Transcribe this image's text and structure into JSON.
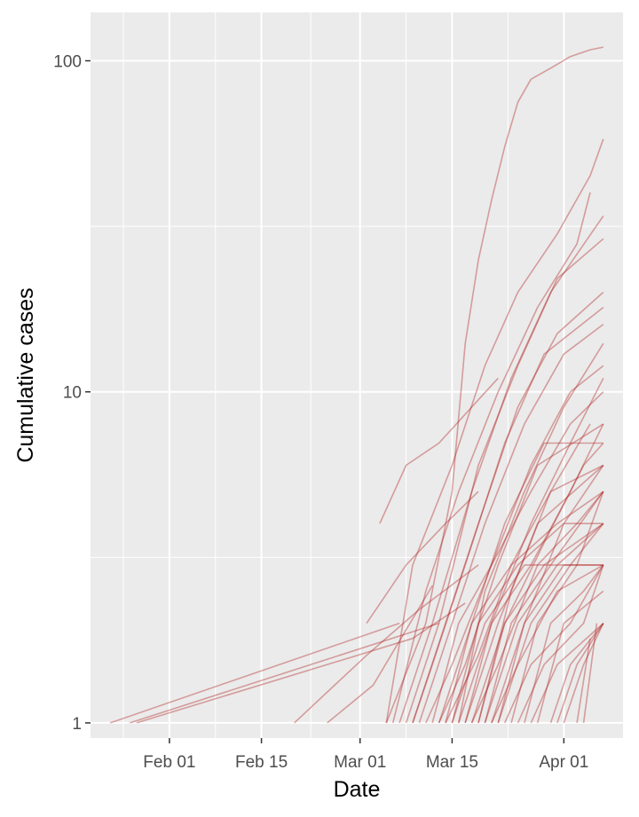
{
  "chart_data": {
    "type": "line",
    "xlabel": "Date",
    "ylabel": "Cumulative cases",
    "x_scale": "date",
    "y_scale": "log10",
    "xlim": [
      "2020-01-20",
      "2020-04-10"
    ],
    "ylim": [
      0.9,
      140
    ],
    "x_ticks": [
      {
        "date": "2020-02-01",
        "label": "Feb 01"
      },
      {
        "date": "2020-02-15",
        "label": "Feb 15"
      },
      {
        "date": "2020-03-01",
        "label": "Mar 01"
      },
      {
        "date": "2020-03-15",
        "label": "Mar 15"
      },
      {
        "date": "2020-04-01",
        "label": "Apr 01"
      }
    ],
    "y_ticks": [
      {
        "value": 1,
        "label": "1"
      },
      {
        "value": 10,
        "label": "10"
      },
      {
        "value": 100,
        "label": "100"
      }
    ],
    "grid": true,
    "line_color": "#b22222",
    "line_opacity": 0.4,
    "series": [
      {
        "points": [
          [
            "2020-01-23",
            1
          ],
          [
            "2020-03-07",
            2
          ]
        ]
      },
      {
        "points": [
          [
            "2020-01-26",
            1
          ],
          [
            "2020-03-13",
            2
          ]
        ]
      },
      {
        "points": [
          [
            "2020-01-27",
            1
          ],
          [
            "2020-03-09",
            1.8
          ],
          [
            "2020-03-17",
            2.3
          ]
        ]
      },
      {
        "points": [
          [
            "2020-02-20",
            1
          ],
          [
            "2020-03-02",
            1.6
          ],
          [
            "2020-03-10",
            2.2
          ],
          [
            "2020-03-19",
            3
          ]
        ]
      },
      {
        "points": [
          [
            "2020-02-25",
            1
          ],
          [
            "2020-03-03",
            1.3
          ],
          [
            "2020-03-12",
            2.6
          ]
        ]
      },
      {
        "points": [
          [
            "2020-03-02",
            2
          ],
          [
            "2020-03-08",
            3
          ],
          [
            "2020-03-14",
            4
          ],
          [
            "2020-03-19",
            5
          ]
        ]
      },
      {
        "points": [
          [
            "2020-03-04",
            4
          ],
          [
            "2020-03-08",
            6
          ],
          [
            "2020-03-13",
            7
          ],
          [
            "2020-03-18",
            9
          ],
          [
            "2020-03-22",
            11
          ]
        ]
      },
      {
        "points": [
          [
            "2020-03-05",
            1
          ],
          [
            "2020-03-11",
            2
          ],
          [
            "2020-03-15",
            5
          ],
          [
            "2020-03-17",
            14
          ],
          [
            "2020-03-19",
            25
          ],
          [
            "2020-03-21",
            38
          ],
          [
            "2020-03-23",
            55
          ],
          [
            "2020-03-25",
            75
          ],
          [
            "2020-03-27",
            88
          ],
          [
            "2020-03-30",
            95
          ],
          [
            "2020-04-02",
            103
          ],
          [
            "2020-04-05",
            108
          ],
          [
            "2020-04-07",
            110
          ]
        ]
      },
      {
        "points": [
          [
            "2020-03-05",
            1
          ],
          [
            "2020-03-09",
            3
          ],
          [
            "2020-03-15",
            6
          ],
          [
            "2020-03-20",
            12
          ],
          [
            "2020-03-25",
            20
          ],
          [
            "2020-03-31",
            30
          ],
          [
            "2020-04-05",
            45
          ],
          [
            "2020-04-07",
            58
          ]
        ]
      },
      {
        "points": [
          [
            "2020-03-06",
            1
          ],
          [
            "2020-03-11",
            2.5
          ],
          [
            "2020-03-16",
            5
          ],
          [
            "2020-03-22",
            10
          ],
          [
            "2020-03-28",
            18
          ],
          [
            "2020-04-03",
            28
          ],
          [
            "2020-04-05",
            40
          ]
        ]
      },
      {
        "points": [
          [
            "2020-03-07",
            1
          ],
          [
            "2020-03-12",
            2
          ],
          [
            "2020-03-18",
            5
          ],
          [
            "2020-03-24",
            11
          ],
          [
            "2020-03-30",
            20
          ],
          [
            "2020-04-07",
            34
          ]
        ]
      },
      {
        "points": [
          [
            "2020-03-08",
            1
          ],
          [
            "2020-03-13",
            2
          ],
          [
            "2020-03-19",
            6
          ],
          [
            "2020-03-25",
            12
          ],
          [
            "2020-03-31",
            22
          ],
          [
            "2020-04-07",
            29
          ]
        ]
      },
      {
        "points": [
          [
            "2020-03-09",
            1
          ],
          [
            "2020-03-14",
            2
          ],
          [
            "2020-03-19",
            4
          ],
          [
            "2020-03-25",
            9
          ],
          [
            "2020-03-31",
            15
          ],
          [
            "2020-04-07",
            20
          ]
        ]
      },
      {
        "points": [
          [
            "2020-03-09",
            1
          ],
          [
            "2020-03-12",
            1.5
          ],
          [
            "2020-03-17",
            3
          ],
          [
            "2020-03-23",
            7
          ],
          [
            "2020-03-29",
            13
          ],
          [
            "2020-04-07",
            18
          ]
        ]
      },
      {
        "points": [
          [
            "2020-03-10",
            1
          ],
          [
            "2020-03-15",
            2
          ],
          [
            "2020-03-20",
            4
          ],
          [
            "2020-03-26",
            8
          ],
          [
            "2020-04-01",
            13
          ],
          [
            "2020-04-07",
            16
          ]
        ]
      },
      {
        "points": [
          [
            "2020-03-11",
            1
          ],
          [
            "2020-03-15",
            1.5
          ],
          [
            "2020-03-21",
            3
          ],
          [
            "2020-03-27",
            6
          ],
          [
            "2020-04-02",
            10
          ],
          [
            "2020-04-07",
            12
          ]
        ]
      },
      {
        "points": [
          [
            "2020-03-12",
            1
          ],
          [
            "2020-03-16",
            2
          ],
          [
            "2020-03-21",
            3
          ],
          [
            "2020-03-27",
            5
          ],
          [
            "2020-04-02",
            8
          ],
          [
            "2020-04-07",
            10
          ]
        ]
      },
      {
        "points": [
          [
            "2020-03-13",
            1
          ],
          [
            "2020-03-17",
            1.5
          ],
          [
            "2020-03-22",
            3
          ],
          [
            "2020-03-28",
            6
          ],
          [
            "2020-04-07",
            8
          ]
        ]
      },
      {
        "points": [
          [
            "2020-03-13",
            1
          ],
          [
            "2020-03-18",
            2
          ],
          [
            "2020-03-23",
            4
          ],
          [
            "2020-03-29",
            7
          ],
          [
            "2020-04-07",
            7
          ]
        ]
      },
      {
        "points": [
          [
            "2020-03-14",
            1
          ],
          [
            "2020-03-18",
            2
          ],
          [
            "2020-03-24",
            3
          ],
          [
            "2020-03-30",
            5
          ],
          [
            "2020-04-07",
            6
          ]
        ]
      },
      {
        "points": [
          [
            "2020-03-14",
            1
          ],
          [
            "2020-03-19",
            1.6
          ],
          [
            "2020-03-24",
            3
          ],
          [
            "2020-03-31",
            4
          ],
          [
            "2020-04-07",
            5
          ]
        ]
      },
      {
        "points": [
          [
            "2020-03-15",
            1
          ],
          [
            "2020-03-19",
            2
          ],
          [
            "2020-03-25",
            3
          ],
          [
            "2020-04-01",
            4
          ],
          [
            "2020-04-07",
            4
          ]
        ]
      },
      {
        "points": [
          [
            "2020-03-15",
            1
          ],
          [
            "2020-03-20",
            2
          ],
          [
            "2020-03-26",
            3
          ],
          [
            "2020-04-07",
            3
          ]
        ]
      },
      {
        "points": [
          [
            "2020-03-16",
            1
          ],
          [
            "2020-03-20",
            2.5
          ],
          [
            "2020-03-26",
            5
          ],
          [
            "2020-04-01",
            9
          ],
          [
            "2020-04-07",
            14
          ]
        ]
      },
      {
        "points": [
          [
            "2020-03-16",
            1
          ],
          [
            "2020-03-21",
            2
          ],
          [
            "2020-03-27",
            4
          ],
          [
            "2020-04-02",
            7
          ],
          [
            "2020-04-07",
            11
          ]
        ]
      },
      {
        "points": [
          [
            "2020-03-17",
            1
          ],
          [
            "2020-03-21",
            2
          ],
          [
            "2020-03-27",
            3
          ],
          [
            "2020-04-02",
            5
          ],
          [
            "2020-04-07",
            8
          ]
        ]
      },
      {
        "points": [
          [
            "2020-03-17",
            1
          ],
          [
            "2020-03-22",
            2
          ],
          [
            "2020-03-28",
            4
          ],
          [
            "2020-04-07",
            6
          ]
        ]
      },
      {
        "points": [
          [
            "2020-03-18",
            1
          ],
          [
            "2020-03-22",
            1.5
          ],
          [
            "2020-03-28",
            3
          ],
          [
            "2020-04-03",
            4
          ],
          [
            "2020-04-07",
            5
          ]
        ]
      },
      {
        "points": [
          [
            "2020-03-18",
            1
          ],
          [
            "2020-03-23",
            2
          ],
          [
            "2020-03-29",
            3
          ],
          [
            "2020-04-07",
            4
          ]
        ]
      },
      {
        "points": [
          [
            "2020-03-19",
            1
          ],
          [
            "2020-03-23",
            2
          ],
          [
            "2020-03-29",
            3.5
          ],
          [
            "2020-04-04",
            6
          ],
          [
            "2020-04-07",
            7
          ]
        ]
      },
      {
        "points": [
          [
            "2020-03-19",
            1
          ],
          [
            "2020-03-24",
            2.5
          ],
          [
            "2020-03-30",
            5
          ],
          [
            "2020-04-05",
            8
          ]
        ]
      },
      {
        "points": [
          [
            "2020-03-20",
            1
          ],
          [
            "2020-03-24",
            2
          ],
          [
            "2020-03-30",
            3
          ],
          [
            "2020-04-07",
            5
          ]
        ]
      },
      {
        "points": [
          [
            "2020-03-20",
            1
          ],
          [
            "2020-03-25",
            2
          ],
          [
            "2020-03-31",
            3
          ],
          [
            "2020-04-07",
            4
          ]
        ]
      },
      {
        "points": [
          [
            "2020-03-21",
            1
          ],
          [
            "2020-03-25",
            1.5
          ],
          [
            "2020-03-31",
            2.5
          ],
          [
            "2020-04-07",
            3
          ]
        ]
      },
      {
        "points": [
          [
            "2020-03-21",
            1
          ],
          [
            "2020-03-26",
            2
          ],
          [
            "2020-04-01",
            3
          ],
          [
            "2020-04-07",
            3
          ]
        ]
      },
      {
        "points": [
          [
            "2020-03-22",
            1
          ],
          [
            "2020-03-26",
            2
          ],
          [
            "2020-04-01",
            4
          ],
          [
            "2020-04-07",
            6
          ]
        ]
      },
      {
        "points": [
          [
            "2020-03-22",
            1
          ],
          [
            "2020-03-27",
            2
          ],
          [
            "2020-04-02",
            3
          ],
          [
            "2020-04-07",
            4
          ]
        ]
      },
      {
        "points": [
          [
            "2020-03-23",
            1
          ],
          [
            "2020-03-27",
            1.5
          ],
          [
            "2020-04-02",
            2
          ],
          [
            "2020-04-07",
            3
          ]
        ]
      },
      {
        "points": [
          [
            "2020-03-24",
            1
          ],
          [
            "2020-03-28",
            2
          ],
          [
            "2020-04-03",
            3
          ],
          [
            "2020-04-07",
            5
          ]
        ]
      },
      {
        "points": [
          [
            "2020-03-25",
            1
          ],
          [
            "2020-03-29",
            1.5
          ],
          [
            "2020-04-04",
            2
          ],
          [
            "2020-04-07",
            3
          ]
        ]
      },
      {
        "points": [
          [
            "2020-03-26",
            1
          ],
          [
            "2020-03-30",
            2
          ],
          [
            "2020-04-04",
            2.5
          ],
          [
            "2020-04-07",
            3
          ]
        ]
      },
      {
        "points": [
          [
            "2020-03-27",
            1
          ],
          [
            "2020-03-31",
            1.5
          ],
          [
            "2020-04-07",
            2
          ]
        ]
      },
      {
        "points": [
          [
            "2020-03-28",
            1
          ],
          [
            "2020-04-01",
            2
          ],
          [
            "2020-04-07",
            2.5
          ]
        ]
      },
      {
        "points": [
          [
            "2020-03-30",
            1
          ],
          [
            "2020-04-02",
            1.5
          ],
          [
            "2020-04-07",
            2
          ]
        ]
      },
      {
        "points": [
          [
            "2020-03-31",
            1
          ],
          [
            "2020-04-03",
            1.5
          ],
          [
            "2020-04-07",
            2
          ]
        ]
      },
      {
        "points": [
          [
            "2020-04-01",
            1
          ],
          [
            "2020-04-04",
            1.5
          ],
          [
            "2020-04-07",
            2
          ]
        ]
      },
      {
        "points": [
          [
            "2020-04-03",
            1
          ],
          [
            "2020-04-05",
            1.8
          ]
        ]
      },
      {
        "points": [
          [
            "2020-04-04",
            1
          ],
          [
            "2020-04-06",
            2
          ]
        ]
      }
    ]
  }
}
